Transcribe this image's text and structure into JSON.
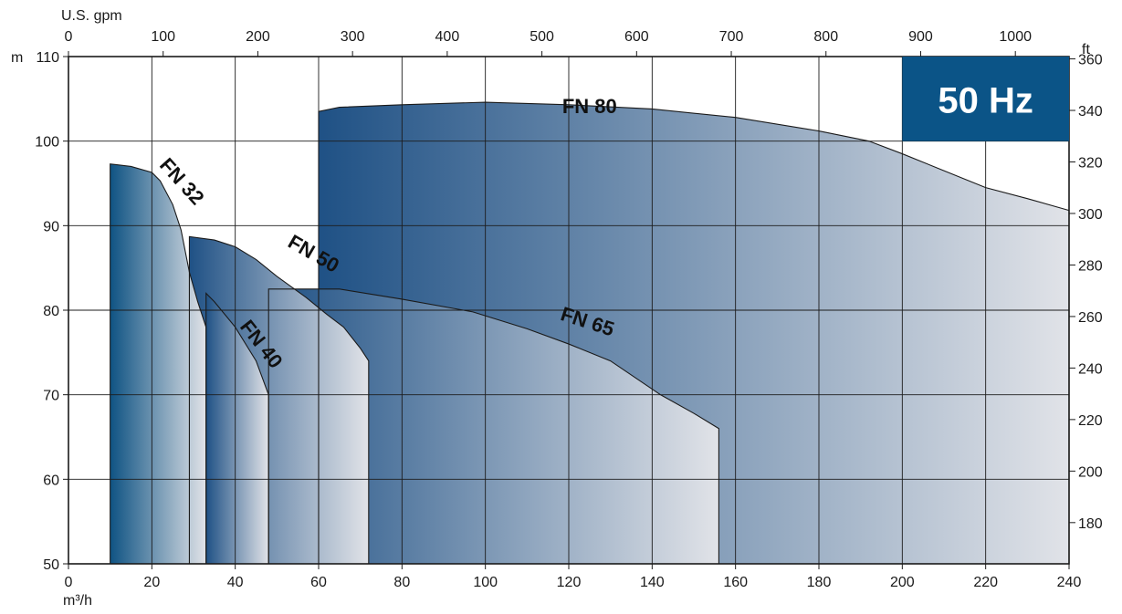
{
  "chart_data": {
    "type": "area",
    "badge": "50 Hz",
    "x_axis": {
      "label": "m³/h",
      "range": [
        0,
        240
      ],
      "ticks": [
        0,
        20,
        40,
        60,
        80,
        100,
        120,
        140,
        160,
        180,
        200,
        220,
        240
      ]
    },
    "x2_axis": {
      "label": "U.S. gpm",
      "range": [
        0,
        1056.7
      ],
      "ticks": [
        0,
        100,
        200,
        300,
        400,
        500,
        600,
        700,
        800,
        900,
        1000
      ]
    },
    "y_axis": {
      "label": "m",
      "range": [
        50,
        110
      ],
      "ticks": [
        50,
        60,
        70,
        80,
        90,
        100,
        110
      ]
    },
    "y2_axis": {
      "label": "ft",
      "range": [
        164,
        360.9
      ],
      "ticks": [
        180,
        200,
        220,
        240,
        260,
        280,
        300,
        320,
        340,
        360
      ]
    },
    "grid": true,
    "series": [
      {
        "name": "FN 80",
        "color_dark": "#1f5185",
        "points": [
          [
            60,
            103.5
          ],
          [
            65,
            104
          ],
          [
            80,
            104.3
          ],
          [
            100,
            104.6
          ],
          [
            120,
            104.3
          ],
          [
            140,
            103.8
          ],
          [
            160,
            102.8
          ],
          [
            180,
            101.2
          ],
          [
            192,
            100
          ],
          [
            200,
            98.5
          ],
          [
            210,
            96.5
          ],
          [
            220,
            94.5
          ],
          [
            230,
            93.2
          ],
          [
            240,
            91.8
          ]
        ]
      },
      {
        "name": "FN 65",
        "color_dark": "#1f5185",
        "points": [
          [
            48,
            82.5
          ],
          [
            54,
            82.5
          ],
          [
            60,
            82.5
          ],
          [
            65,
            82.5
          ],
          [
            80,
            81.3
          ],
          [
            97,
            79.8
          ],
          [
            110,
            77.8
          ],
          [
            120,
            76
          ],
          [
            130,
            74
          ],
          [
            142,
            70
          ],
          [
            150,
            67.8
          ],
          [
            156,
            66
          ],
          [
            156,
            50
          ]
        ]
      },
      {
        "name": "FN 50",
        "color_dark": "#1f5185",
        "points": [
          [
            29,
            88.7
          ],
          [
            35,
            88.3
          ],
          [
            40,
            87.5
          ],
          [
            45,
            86
          ],
          [
            50,
            84
          ],
          [
            57,
            81.5
          ],
          [
            62,
            79.5
          ],
          [
            66,
            78
          ],
          [
            70,
            75.5
          ],
          [
            72,
            74
          ],
          [
            72,
            50
          ]
        ]
      },
      {
        "name": "FN 40",
        "color_dark": "#1f5185",
        "points": [
          [
            33,
            82
          ],
          [
            35,
            81
          ],
          [
            40,
            78
          ],
          [
            45,
            74
          ],
          [
            48,
            70
          ],
          [
            48,
            50
          ]
        ]
      },
      {
        "name": "FN 32",
        "color_dark": "#0f5383",
        "points": [
          [
            10,
            97.3
          ],
          [
            15,
            97
          ],
          [
            20,
            96.3
          ],
          [
            22,
            95.3
          ],
          [
            25,
            92.5
          ],
          [
            27,
            89.5
          ],
          [
            29,
            84.5
          ],
          [
            31,
            81
          ],
          [
            33,
            78
          ],
          [
            33,
            50
          ]
        ]
      }
    ]
  }
}
